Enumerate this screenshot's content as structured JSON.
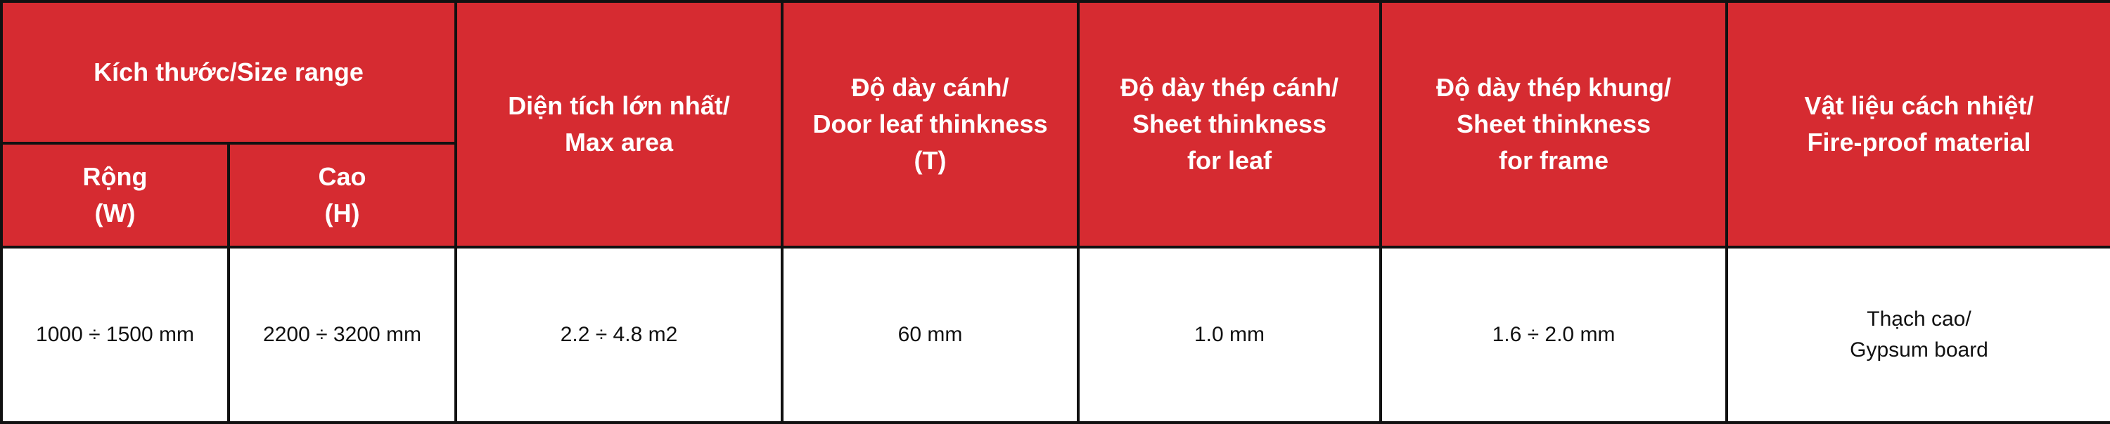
{
  "table": {
    "headers": {
      "size_range": "Kích thước/Size range",
      "width": [
        "Rộng",
        "(W)"
      ],
      "height": [
        "Cao",
        "(H)"
      ],
      "max_area": [
        "Diện tích lớn nhất/",
        "Max area"
      ],
      "door_leaf_thickness": [
        "Độ dày cánh/",
        "Door leaf thinkness",
        "(T)"
      ],
      "sheet_thickness_leaf": [
        "Độ dày thép cánh/",
        "Sheet thinkness",
        "for leaf"
      ],
      "sheet_thickness_frame": [
        "Độ dày thép khung/",
        "Sheet thinkness",
        "for frame"
      ],
      "fireproof_material": [
        "Vật liệu cách nhiệt/",
        "Fire-proof material"
      ]
    },
    "row": {
      "width": "1000 ÷ 1500 mm",
      "height": "2200 ÷ 3200 mm",
      "max_area": "2.2 ÷ 4.8 m2",
      "door_leaf_thickness": "60 mm",
      "sheet_thickness_leaf": "1.0 mm",
      "sheet_thickness_frame": "1.6 ÷ 2.0 mm",
      "fireproof_material": [
        "Thạch cao/",
        "Gypsum board"
      ]
    },
    "colors": {
      "header_bg": "#d62b31",
      "header_text": "#ffffff",
      "border": "#111111"
    }
  }
}
